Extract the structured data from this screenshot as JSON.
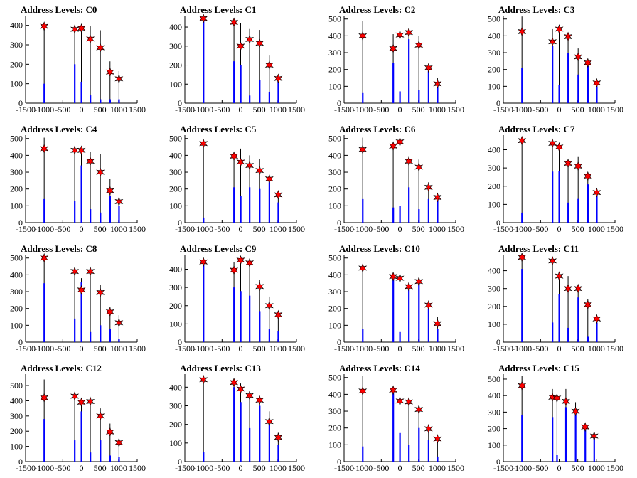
{
  "figure": {
    "x_ticks": [
      -1500,
      -1000,
      -500,
      0,
      500,
      1000,
      1500
    ],
    "xlim": [
      -1500,
      1500
    ],
    "colors": {
      "bar": "#0000ff",
      "outline": "#000000",
      "marker": "#ff0000",
      "axis": "#000000"
    },
    "marker_icon": "red-star-icon"
  },
  "chart_data": [
    {
      "type": "bar",
      "title": "Address Levels: C0",
      "xlim": [
        -1500,
        1500
      ],
      "ylim": [
        0,
        450
      ],
      "y_ticks": [
        0,
        100,
        200,
        300,
        400
      ],
      "stars": {
        "x": [
          -1000,
          -180,
          0,
          240,
          510,
          770,
          1010
        ],
        "y": [
          395,
          380,
          385,
          330,
          285,
          160,
          125
        ]
      },
      "bars": [
        {
          "x": -1000,
          "outline": 400,
          "fill": 100
        },
        {
          "x": -180,
          "outline": 385,
          "fill": 200
        },
        {
          "x": 0,
          "outline": 385,
          "fill": 110
        },
        {
          "x": 240,
          "outline": 395,
          "fill": 40
        },
        {
          "x": 510,
          "outline": 375,
          "fill": 20
        },
        {
          "x": 770,
          "outline": 215,
          "fill": 20
        },
        {
          "x": 1010,
          "outline": 165,
          "fill": 20
        }
      ]
    },
    {
      "type": "bar",
      "title": "Address Levels: C1",
      "xlim": [
        -1500,
        1500
      ],
      "ylim": [
        0,
        460
      ],
      "y_ticks": [
        0,
        100,
        200,
        300,
        400
      ],
      "stars": {
        "x": [
          -1000,
          -180,
          0,
          240,
          510,
          770,
          1010
        ],
        "y": [
          445,
          425,
          300,
          335,
          315,
          200,
          130
        ]
      },
      "bars": [
        {
          "x": -1000,
          "outline": 440,
          "fill": 440
        },
        {
          "x": -180,
          "outline": 420,
          "fill": 220
        },
        {
          "x": 0,
          "outline": 420,
          "fill": 200
        },
        {
          "x": 240,
          "outline": 390,
          "fill": 40
        },
        {
          "x": 510,
          "outline": 385,
          "fill": 120
        },
        {
          "x": 770,
          "outline": 250,
          "fill": 60
        },
        {
          "x": 1010,
          "outline": 140,
          "fill": 130
        }
      ]
    },
    {
      "type": "bar",
      "title": "Address Levels: C2",
      "xlim": [
        -1500,
        1500
      ],
      "ylim": [
        0,
        520
      ],
      "y_ticks": [
        0,
        100,
        200,
        300,
        400,
        500
      ],
      "stars": {
        "x": [
          -1000,
          -180,
          0,
          240,
          510,
          770,
          1010
        ],
        "y": [
          400,
          325,
          405,
          420,
          345,
          210,
          115
        ]
      },
      "bars": [
        {
          "x": -1000,
          "outline": 490,
          "fill": 60
        },
        {
          "x": -180,
          "outline": 410,
          "fill": 240
        },
        {
          "x": 0,
          "outline": 440,
          "fill": 70
        },
        {
          "x": 240,
          "outline": 420,
          "fill": 380
        },
        {
          "x": 510,
          "outline": 400,
          "fill": 80
        },
        {
          "x": 770,
          "outline": 200,
          "fill": 190
        },
        {
          "x": 1010,
          "outline": 150,
          "fill": 130
        }
      ]
    },
    {
      "type": "bar",
      "title": "Address Levels: C3",
      "xlim": [
        -1500,
        1500
      ],
      "ylim": [
        0,
        520
      ],
      "y_ticks": [
        0,
        100,
        200,
        300,
        400,
        500
      ],
      "stars": {
        "x": [
          -1000,
          -180,
          0,
          240,
          510,
          770,
          1010
        ],
        "y": [
          425,
          365,
          440,
          395,
          275,
          240,
          120
        ]
      },
      "bars": [
        {
          "x": -1000,
          "outline": 515,
          "fill": 210
        },
        {
          "x": -180,
          "outline": 440,
          "fill": 340
        },
        {
          "x": 0,
          "outline": 430,
          "fill": 110
        },
        {
          "x": 240,
          "outline": 420,
          "fill": 300
        },
        {
          "x": 510,
          "outline": 325,
          "fill": 170
        },
        {
          "x": 770,
          "outline": 240,
          "fill": 220
        },
        {
          "x": 1010,
          "outline": 120,
          "fill": 100
        }
      ]
    },
    {
      "type": "bar",
      "title": "Address Levels: C4",
      "xlim": [
        -1500,
        1500
      ],
      "ylim": [
        0,
        520
      ],
      "y_ticks": [
        0,
        100,
        200,
        300,
        400,
        500
      ],
      "stars": {
        "x": [
          -1000,
          -180,
          0,
          240,
          510,
          770,
          1010
        ],
        "y": [
          440,
          430,
          430,
          365,
          300,
          190,
          125
        ]
      },
      "bars": [
        {
          "x": -1000,
          "outline": 505,
          "fill": 140
        },
        {
          "x": -180,
          "outline": 430,
          "fill": 130
        },
        {
          "x": 0,
          "outline": 425,
          "fill": 340
        },
        {
          "x": 240,
          "outline": 420,
          "fill": 80
        },
        {
          "x": 510,
          "outline": 410,
          "fill": 60
        },
        {
          "x": 770,
          "outline": 260,
          "fill": 160
        },
        {
          "x": 1010,
          "outline": 150,
          "fill": 100
        }
      ]
    },
    {
      "type": "bar",
      "title": "Address Levels: C5",
      "xlim": [
        -1500,
        1500
      ],
      "ylim": [
        0,
        520
      ],
      "y_ticks": [
        0,
        100,
        200,
        300,
        400,
        500
      ],
      "stars": {
        "x": [
          -1000,
          -180,
          0,
          240,
          510,
          770,
          1010
        ],
        "y": [
          470,
          395,
          360,
          340,
          310,
          260,
          165
        ]
      },
      "bars": [
        {
          "x": -1000,
          "outline": 470,
          "fill": 30
        },
        {
          "x": -180,
          "outline": 420,
          "fill": 210
        },
        {
          "x": 0,
          "outline": 440,
          "fill": 160
        },
        {
          "x": 240,
          "outline": 400,
          "fill": 210
        },
        {
          "x": 510,
          "outline": 380,
          "fill": 200
        },
        {
          "x": 770,
          "outline": 260,
          "fill": 240
        },
        {
          "x": 1010,
          "outline": 160,
          "fill": 120
        }
      ]
    },
    {
      "type": "bar",
      "title": "Address Levels: C6",
      "xlim": [
        -1500,
        1500
      ],
      "ylim": [
        0,
        520
      ],
      "y_ticks": [
        0,
        100,
        200,
        300,
        400,
        500
      ],
      "stars": {
        "x": [
          -1000,
          -180,
          0,
          240,
          510,
          770,
          1010
        ],
        "y": [
          435,
          455,
          480,
          365,
          330,
          210,
          150
        ]
      },
      "bars": [
        {
          "x": -1000,
          "outline": 505,
          "fill": 140
        },
        {
          "x": -180,
          "outline": 460,
          "fill": 90
        },
        {
          "x": 0,
          "outline": 480,
          "fill": 100
        },
        {
          "x": 240,
          "outline": 380,
          "fill": 210
        },
        {
          "x": 510,
          "outline": 375,
          "fill": 80
        },
        {
          "x": 770,
          "outline": 240,
          "fill": 140
        },
        {
          "x": 1010,
          "outline": 160,
          "fill": 150
        }
      ]
    },
    {
      "type": "bar",
      "title": "Address Levels: C7",
      "xlim": [
        -1500,
        1500
      ],
      "ylim": [
        0,
        480
      ],
      "y_ticks": [
        0,
        100,
        200,
        300,
        400
      ],
      "stars": {
        "x": [
          -1000,
          -180,
          0,
          240,
          510,
          770,
          1010
        ],
        "y": [
          450,
          435,
          415,
          325,
          310,
          255,
          165
        ]
      },
      "bars": [
        {
          "x": -1000,
          "outline": 450,
          "fill": 55
        },
        {
          "x": -180,
          "outline": 445,
          "fill": 280
        },
        {
          "x": 0,
          "outline": 420,
          "fill": 285
        },
        {
          "x": 240,
          "outline": 340,
          "fill": 110
        },
        {
          "x": 510,
          "outline": 360,
          "fill": 130
        },
        {
          "x": 770,
          "outline": 250,
          "fill": 210
        },
        {
          "x": 1010,
          "outline": 150,
          "fill": 150
        }
      ]
    },
    {
      "type": "bar",
      "title": "Address Levels: C8",
      "xlim": [
        -1500,
        1500
      ],
      "ylim": [
        0,
        520
      ],
      "y_ticks": [
        0,
        100,
        200,
        300,
        400,
        500
      ],
      "stars": {
        "x": [
          -1000,
          -180,
          0,
          240,
          510,
          770,
          1010
        ],
        "y": [
          500,
          420,
          310,
          420,
          295,
          180,
          115
        ]
      },
      "bars": [
        {
          "x": -1000,
          "outline": 500,
          "fill": 350
        },
        {
          "x": -180,
          "outline": 430,
          "fill": 140
        },
        {
          "x": 0,
          "outline": 380,
          "fill": 355
        },
        {
          "x": 240,
          "outline": 415,
          "fill": 60
        },
        {
          "x": 510,
          "outline": 340,
          "fill": 100
        },
        {
          "x": 770,
          "outline": 210,
          "fill": 80
        },
        {
          "x": 1010,
          "outline": 160,
          "fill": 20
        }
      ]
    },
    {
      "type": "bar",
      "title": "Address Levels: C9",
      "xlim": [
        -1500,
        1500
      ],
      "ylim": [
        0,
        480
      ],
      "y_ticks": [
        0,
        100,
        200,
        300,
        400
      ],
      "stars": {
        "x": [
          -1000,
          -180,
          0,
          240,
          510,
          770,
          1010
        ],
        "y": [
          440,
          395,
          450,
          435,
          305,
          200,
          150
        ]
      },
      "bars": [
        {
          "x": -1000,
          "outline": 430,
          "fill": 430
        },
        {
          "x": -180,
          "outline": 440,
          "fill": 300
        },
        {
          "x": 0,
          "outline": 450,
          "fill": 280
        },
        {
          "x": 240,
          "outline": 430,
          "fill": 255
        },
        {
          "x": 510,
          "outline": 340,
          "fill": 170
        },
        {
          "x": 770,
          "outline": 250,
          "fill": 70
        },
        {
          "x": 1010,
          "outline": 160,
          "fill": 60
        }
      ]
    },
    {
      "type": "bar",
      "title": "Address Levels: C10",
      "xlim": [
        -1500,
        1500
      ],
      "ylim": [
        0,
        520
      ],
      "y_ticks": [
        0,
        100,
        200,
        300,
        400,
        500
      ],
      "stars": {
        "x": [
          -1000,
          -180,
          0,
          240,
          510,
          770,
          1010
        ],
        "y": [
          440,
          390,
          380,
          330,
          360,
          220,
          110
        ]
      },
      "bars": [
        {
          "x": -1000,
          "outline": 420,
          "fill": 80
        },
        {
          "x": -180,
          "outline": 410,
          "fill": 380
        },
        {
          "x": 0,
          "outline": 420,
          "fill": 60
        },
        {
          "x": 240,
          "outline": 350,
          "fill": 310
        },
        {
          "x": 510,
          "outline": 360,
          "fill": 350
        },
        {
          "x": 770,
          "outline": 220,
          "fill": 200
        },
        {
          "x": 1010,
          "outline": 150,
          "fill": 80
        }
      ]
    },
    {
      "type": "bar",
      "title": "Address Levels: C11",
      "xlim": [
        -1500,
        1500
      ],
      "ylim": [
        0,
        490
      ],
      "y_ticks": [
        0,
        100,
        200,
        300,
        400
      ],
      "stars": {
        "x": [
          -1000,
          -180,
          0,
          240,
          510,
          770,
          1010
        ],
        "y": [
          475,
          455,
          370,
          300,
          300,
          210,
          130
        ]
      },
      "bars": [
        {
          "x": -1000,
          "outline": 470,
          "fill": 410
        },
        {
          "x": -180,
          "outline": 445,
          "fill": 110
        },
        {
          "x": 0,
          "outline": 390,
          "fill": 270
        },
        {
          "x": 240,
          "outline": 370,
          "fill": 80
        },
        {
          "x": 510,
          "outline": 310,
          "fill": 250
        },
        {
          "x": 770,
          "outline": 240,
          "fill": 30
        },
        {
          "x": 1010,
          "outline": 145,
          "fill": 110
        }
      ]
    },
    {
      "type": "bar",
      "title": "Address Levels: C12",
      "xlim": [
        -1500,
        1500
      ],
      "ylim": [
        0,
        575
      ],
      "y_ticks": [
        0,
        100,
        200,
        300,
        400,
        500
      ],
      "stars": {
        "x": [
          -1000,
          -180,
          0,
          240,
          510,
          770,
          1010
        ],
        "y": [
          420,
          430,
          390,
          395,
          300,
          195,
          125
        ]
      },
      "bars": [
        {
          "x": -1000,
          "outline": 540,
          "fill": 280
        },
        {
          "x": -180,
          "outline": 440,
          "fill": 140
        },
        {
          "x": 0,
          "outline": 400,
          "fill": 330
        },
        {
          "x": 240,
          "outline": 400,
          "fill": 60
        },
        {
          "x": 510,
          "outline": 350,
          "fill": 140
        },
        {
          "x": 770,
          "outline": 250,
          "fill": 40
        },
        {
          "x": 1010,
          "outline": 150,
          "fill": 30
        }
      ]
    },
    {
      "type": "bar",
      "title": "Address Levels: C13",
      "xlim": [
        -1500,
        1500
      ],
      "ylim": [
        0,
        470
      ],
      "y_ticks": [
        0,
        100,
        200,
        300,
        400
      ],
      "stars": {
        "x": [
          -1000,
          -180,
          0,
          240,
          510,
          770,
          1010
        ],
        "y": [
          440,
          425,
          390,
          355,
          330,
          215,
          130
        ]
      },
      "bars": [
        {
          "x": -1000,
          "outline": 440,
          "fill": 50
        },
        {
          "x": -180,
          "outline": 430,
          "fill": 400
        },
        {
          "x": 0,
          "outline": 420,
          "fill": 320
        },
        {
          "x": 240,
          "outline": 380,
          "fill": 180
        },
        {
          "x": 510,
          "outline": 340,
          "fill": 300
        },
        {
          "x": 770,
          "outline": 270,
          "fill": 200
        },
        {
          "x": 1010,
          "outline": 155,
          "fill": 90
        }
      ]
    },
    {
      "type": "bar",
      "title": "Address Levels: C14",
      "xlim": [
        -1500,
        1500
      ],
      "ylim": [
        0,
        520
      ],
      "y_ticks": [
        0,
        100,
        200,
        300,
        400,
        500
      ],
      "stars": {
        "x": [
          -1000,
          -180,
          0,
          240,
          510,
          770,
          1010
        ],
        "y": [
          420,
          425,
          360,
          355,
          310,
          195,
          135
        ]
      },
      "bars": [
        {
          "x": -1000,
          "outline": 510,
          "fill": 90
        },
        {
          "x": -180,
          "outline": 420,
          "fill": 405
        },
        {
          "x": 0,
          "outline": 450,
          "fill": 170
        },
        {
          "x": 240,
          "outline": 360,
          "fill": 100
        },
        {
          "x": 510,
          "outline": 330,
          "fill": 200
        },
        {
          "x": 770,
          "outline": 220,
          "fill": 130
        },
        {
          "x": 1010,
          "outline": 140,
          "fill": 30
        }
      ]
    },
    {
      "type": "bar",
      "title": "Address Levels: C15",
      "xlim": [
        -1500,
        1500
      ],
      "ylim": [
        0,
        530
      ],
      "y_ticks": [
        0,
        100,
        200,
        300,
        400,
        500
      ],
      "stars": {
        "x": [
          -1000,
          -180,
          -60,
          180,
          440,
          700,
          940
        ],
        "y": [
          460,
          390,
          385,
          365,
          305,
          210,
          155
        ]
      },
      "bars": [
        {
          "x": -1000,
          "outline": 520,
          "fill": 280
        },
        {
          "x": -180,
          "outline": 440,
          "fill": 270
        },
        {
          "x": -60,
          "outline": 400,
          "fill": 40
        },
        {
          "x": 180,
          "outline": 440,
          "fill": 330
        },
        {
          "x": 440,
          "outline": 360,
          "fill": 300
        },
        {
          "x": 700,
          "outline": 220,
          "fill": 210
        },
        {
          "x": 940,
          "outline": 160,
          "fill": 160
        }
      ]
    }
  ]
}
